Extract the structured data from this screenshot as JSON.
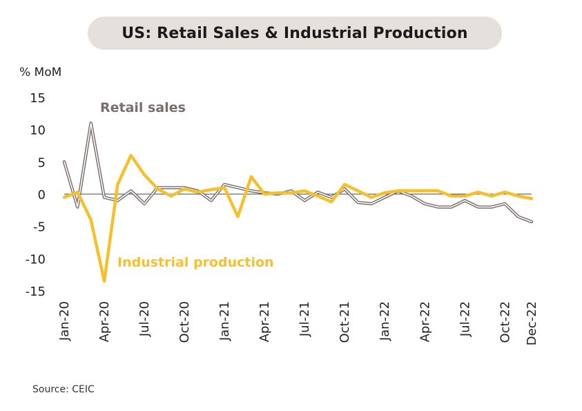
{
  "title": "US: Retail Sales & Industrial Production",
  "source": "Source: CEIC",
  "colors": {
    "retail": "#7a6d6b",
    "industrial": "#f5c02b",
    "zero_line": "#444444",
    "title_bg": "#e6e0dc"
  },
  "chart_data": {
    "type": "line",
    "title": "US: Retail Sales & Industrial Production",
    "ylabel": "% MoM",
    "ylim": [
      -15,
      15
    ],
    "yticks": [
      15,
      10,
      5,
      0,
      -5,
      -10,
      -15
    ],
    "x": [
      "Jan-20",
      "Feb-20",
      "Mar-20",
      "Apr-20",
      "May-20",
      "Jun-20",
      "Jul-20",
      "Aug-20",
      "Sep-20",
      "Oct-20",
      "Nov-20",
      "Dec-20",
      "Jan-21",
      "Feb-21",
      "Mar-21",
      "Apr-21",
      "May-21",
      "Jun-21",
      "Jul-21",
      "Aug-21",
      "Sep-21",
      "Oct-21",
      "Nov-21",
      "Dec-21",
      "Jan-22",
      "Feb-22",
      "Mar-22",
      "Apr-22",
      "May-22",
      "Jun-22",
      "Jul-22",
      "Aug-22",
      "Sep-22",
      "Oct-22",
      "Nov-22",
      "Dec-22"
    ],
    "xtick_labels": [
      "Jan-20",
      "Apr-20",
      "Jul-20",
      "Oct-20",
      "Jan-21",
      "Apr-21",
      "Jul-21",
      "Oct-21",
      "Jan-22",
      "Apr-22",
      "Jul-22",
      "Oct-22",
      "Dec-22"
    ],
    "series": [
      {
        "name": "Retail sales",
        "values": [
          5,
          -2,
          11,
          -0.5,
          -1,
          0.5,
          -1.5,
          1,
          1,
          1,
          0.5,
          -1,
          1.5,
          1,
          0.5,
          0.2,
          0,
          0.5,
          -1,
          0.3,
          -0.5,
          0.8,
          -1.3,
          -1.5,
          -0.5,
          0.5,
          -0.3,
          -1.5,
          -2,
          -2,
          -1,
          -2,
          -2,
          -1.5,
          -3.5,
          -4.3
        ]
      },
      {
        "name": "Industrial production",
        "values": [
          -0.5,
          0.3,
          -4,
          -13.5,
          1.5,
          6,
          3,
          0.8,
          -0.3,
          0.8,
          0.3,
          0.7,
          1,
          -3.5,
          2.7,
          0,
          0.2,
          0.2,
          0.5,
          -0.3,
          -1.2,
          1.5,
          0.5,
          -0.5,
          0.2,
          0.5,
          0.5,
          0.5,
          0.5,
          -0.3,
          -0.3,
          0.3,
          -0.3,
          0.3,
          -0.3,
          -0.7
        ]
      }
    ],
    "grid": false,
    "legend": "inline labels"
  }
}
